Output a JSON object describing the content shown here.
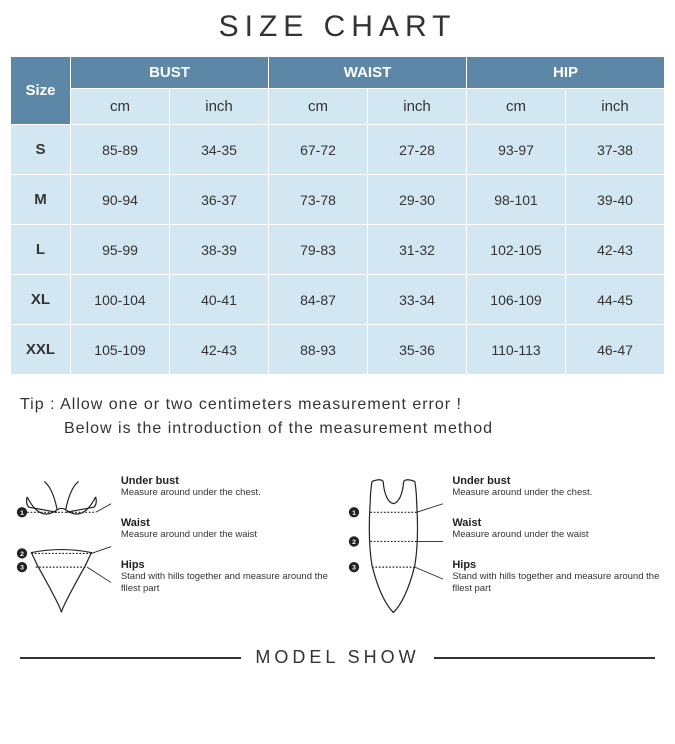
{
  "title": "SIZE  CHART",
  "table": {
    "columns": {
      "size": "Size",
      "groups": [
        "BUST",
        "WAIST",
        "HIP"
      ],
      "sub": [
        "cm",
        "inch",
        "cm",
        "inch",
        "cm",
        "inch"
      ]
    },
    "rows": [
      {
        "size": "S",
        "v": [
          "85-89",
          "34-35",
          "67-72",
          "27-28",
          "93-97",
          "37-38"
        ]
      },
      {
        "size": "M",
        "v": [
          "90-94",
          "36-37",
          "73-78",
          "29-30",
          "98-101",
          "39-40"
        ]
      },
      {
        "size": "L",
        "v": [
          "95-99",
          "38-39",
          "79-83",
          "31-32",
          "102-105",
          "42-43"
        ]
      },
      {
        "size": "XL",
        "v": [
          "100-104",
          "40-41",
          "84-87",
          "33-34",
          "106-109",
          "44-45"
        ]
      },
      {
        "size": "XXL",
        "v": [
          "105-109",
          "42-43",
          "88-93",
          "35-36",
          "110-113",
          "46-47"
        ]
      }
    ],
    "header_bg": "#5c87a6",
    "header_text": "#ffffff",
    "body_bg": "#d2e7f2",
    "border_color": "#ffffff"
  },
  "tip": {
    "line1": "Tip : Allow one or two centimeters measurement error !",
    "line2": "Below is the introduction of the measurement method"
  },
  "measure_labels": [
    {
      "n": "1",
      "h": "Under bust",
      "d": "Measure around under the chest."
    },
    {
      "n": "2",
      "h": "Waist",
      "d": "Measure around under the waist"
    },
    {
      "n": "3",
      "h": "Hips",
      "d": "Stand with hills together and measure around the fllest part"
    }
  ],
  "footer": "MODEL SHOW",
  "colors": {
    "page_bg": "#ffffff",
    "text": "#333333",
    "outline": "#222222"
  }
}
